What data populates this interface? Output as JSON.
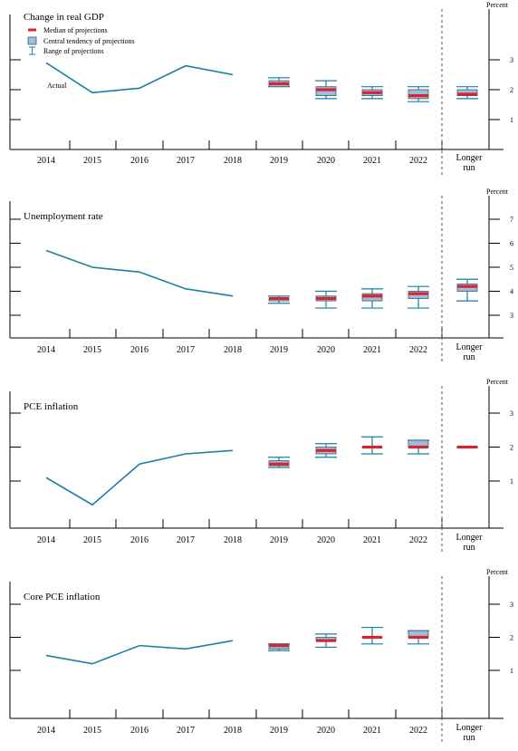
{
  "legend": {
    "median": "Median of projections",
    "central": "Central tendency of projections",
    "range": "Range of projections"
  },
  "colors": {
    "actual": "#1a7fa5",
    "median": "#d9232e",
    "box_fill": "#9dbdd9",
    "box_stroke": "#3a5a7a",
    "range": "#1a7fa5"
  },
  "chart_data": [
    {
      "type": "line",
      "title": "Change in real GDP",
      "unit": "Percent",
      "ylim": [
        0,
        3.5
      ],
      "yticks": [
        "1",
        "2",
        "3"
      ],
      "categories": [
        "2014",
        "2015",
        "2016",
        "2017",
        "2018",
        "2019",
        "2020",
        "2021",
        "2022",
        "Longer run"
      ],
      "annotation": "Actual",
      "actual": {
        "x": [
          "2014",
          "2015",
          "2016",
          "2017",
          "2018"
        ],
        "values": [
          2.9,
          1.9,
          2.05,
          2.8,
          2.5
        ]
      },
      "projections": [
        {
          "x": "2019",
          "range": [
            2.1,
            2.4
          ],
          "central": [
            2.1,
            2.3
          ],
          "median": 2.2
        },
        {
          "x": "2020",
          "range": [
            1.7,
            2.3
          ],
          "central": [
            1.8,
            2.1
          ],
          "median": 2.0
        },
        {
          "x": "2021",
          "range": [
            1.7,
            2.1
          ],
          "central": [
            1.8,
            2.0
          ],
          "median": 1.9
        },
        {
          "x": "2022",
          "range": [
            1.6,
            2.1
          ],
          "central": [
            1.7,
            2.0
          ],
          "median": 1.8
        },
        {
          "x": "Longer run",
          "range": [
            1.7,
            2.1
          ],
          "central": [
            1.8,
            2.0
          ],
          "median": 1.85
        }
      ]
    },
    {
      "type": "line",
      "title": "Unemployment rate",
      "unit": "Percent",
      "ylim": [
        2.5,
        7.5
      ],
      "yticks": [
        "3",
        "4",
        "5",
        "6",
        "7"
      ],
      "categories": [
        "2014",
        "2015",
        "2016",
        "2017",
        "2018",
        "2019",
        "2020",
        "2021",
        "2022",
        "Longer run"
      ],
      "actual": {
        "x": [
          "2014",
          "2015",
          "2016",
          "2017",
          "2018"
        ],
        "values": [
          5.7,
          5.0,
          4.8,
          4.1,
          3.8
        ]
      },
      "projections": [
        {
          "x": "2019",
          "range": [
            3.5,
            3.8
          ],
          "central": [
            3.6,
            3.7
          ],
          "median": 3.7
        },
        {
          "x": "2020",
          "range": [
            3.3,
            4.0
          ],
          "central": [
            3.6,
            3.8
          ],
          "median": 3.7
        },
        {
          "x": "2021",
          "range": [
            3.3,
            4.1
          ],
          "central": [
            3.6,
            3.9
          ],
          "median": 3.8
        },
        {
          "x": "2022",
          "range": [
            3.3,
            4.2
          ],
          "central": [
            3.7,
            4.0
          ],
          "median": 3.9
        },
        {
          "x": "Longer run",
          "range": [
            3.6,
            4.5
          ],
          "central": [
            4.0,
            4.3
          ],
          "median": 4.2
        }
      ]
    },
    {
      "type": "line",
      "title": "PCE inflation",
      "unit": "Percent",
      "ylim": [
        0,
        3.5
      ],
      "yticks": [
        "1",
        "2",
        "3"
      ],
      "categories": [
        "2014",
        "2015",
        "2016",
        "2017",
        "2018",
        "2019",
        "2020",
        "2021",
        "2022",
        "Longer run"
      ],
      "actual": {
        "x": [
          "2014",
          "2015",
          "2016",
          "2017",
          "2018"
        ],
        "values": [
          1.1,
          0.3,
          1.5,
          1.8,
          1.9
        ]
      },
      "projections": [
        {
          "x": "2019",
          "range": [
            1.4,
            1.7
          ],
          "central": [
            1.45,
            1.6
          ],
          "median": 1.5
        },
        {
          "x": "2020",
          "range": [
            1.7,
            2.1
          ],
          "central": [
            1.8,
            2.0
          ],
          "median": 1.9
        },
        {
          "x": "2021",
          "range": [
            1.8,
            2.3
          ],
          "central": [
            2.0,
            2.0
          ],
          "median": 2.0
        },
        {
          "x": "2022",
          "range": [
            1.8,
            2.2
          ],
          "central": [
            2.0,
            2.2
          ],
          "median": 2.0
        },
        {
          "x": "Longer run",
          "range": [
            2.0,
            2.0
          ],
          "central": [
            2.0,
            2.0
          ],
          "median": 2.0
        }
      ]
    },
    {
      "type": "line",
      "title": "Core PCE inflation",
      "unit": "Percent",
      "ylim": [
        0,
        3.5
      ],
      "yticks": [
        "1",
        "2",
        "3"
      ],
      "categories": [
        "2014",
        "2015",
        "2016",
        "2017",
        "2018",
        "2019",
        "2020",
        "2021",
        "2022",
        "Longer run"
      ],
      "actual": {
        "x": [
          "2014",
          "2015",
          "2016",
          "2017",
          "2018"
        ],
        "values": [
          1.45,
          1.2,
          1.75,
          1.65,
          1.9
        ]
      },
      "projections": [
        {
          "x": "2019",
          "range": [
            1.6,
            1.8
          ],
          "central": [
            1.65,
            1.8
          ],
          "median": 1.75
        },
        {
          "x": "2020",
          "range": [
            1.7,
            2.1
          ],
          "central": [
            1.9,
            2.0
          ],
          "median": 1.9
        },
        {
          "x": "2021",
          "range": [
            1.8,
            2.3
          ],
          "central": [
            2.0,
            2.0
          ],
          "median": 2.0
        },
        {
          "x": "2022",
          "range": [
            1.8,
            2.2
          ],
          "central": [
            2.0,
            2.2
          ],
          "median": 2.0
        }
      ]
    }
  ]
}
